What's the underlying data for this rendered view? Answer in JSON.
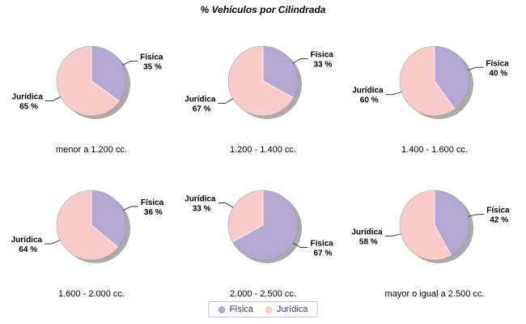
{
  "title": "% Vehículos por Cilindrada",
  "chart_data": {
    "type": "pie",
    "title": "% Vehículos por Cilindrada",
    "series_labels": [
      "Física",
      "Jurídica"
    ],
    "colors": [
      "#b3a8d2",
      "#f9caca"
    ],
    "value_suffix": " %",
    "start_angle": "top",
    "direction": "clockwise",
    "legend_position": "bottom",
    "shadow_color": "#9b9b9b",
    "charts": [
      {
        "category": "menor a 1.200 cc.",
        "values": [
          35,
          65
        ]
      },
      {
        "category": "1.200 - 1.400 cc.",
        "values": [
          33,
          67
        ]
      },
      {
        "category": "1.400 - 1.600 cc.",
        "values": [
          40,
          60
        ]
      },
      {
        "category": "1.600 - 2.000 cc.",
        "values": [
          36,
          64
        ]
      },
      {
        "category": "2.000 - 2.500 cc.",
        "values": [
          67,
          33
        ]
      },
      {
        "category": "mayor o igual a 2.500 cc.",
        "values": [
          42,
          58
        ]
      }
    ]
  }
}
